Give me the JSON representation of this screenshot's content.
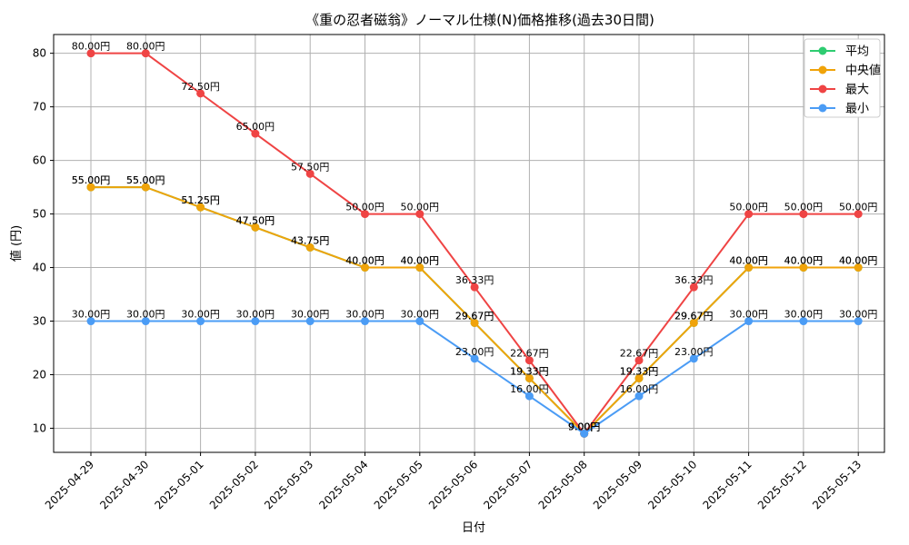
{
  "chart_data": {
    "type": "line",
    "title": "《重の忍者磁翁》ノーマル仕様(N)価格推移(過去30日間)",
    "xlabel": "日付",
    "ylabel": "値 (円)",
    "categories": [
      "2025-04-29",
      "2025-04-30",
      "2025-05-01",
      "2025-05-02",
      "2025-05-03",
      "2025-05-04",
      "2025-05-05",
      "2025-05-06",
      "2025-05-07",
      "2025-05-08",
      "2025-05-09",
      "2025-05-10",
      "2025-05-11",
      "2025-05-12",
      "2025-05-13"
    ],
    "ylim": [
      5.5,
      83.5
    ],
    "yticks": [
      10,
      20,
      30,
      40,
      50,
      60,
      70,
      80
    ],
    "grid": true,
    "legend_position": "top-right",
    "series": [
      {
        "name": "平均",
        "color": "#2ecc71",
        "values": [
          55.0,
          55.0,
          51.25,
          47.5,
          43.75,
          40.0,
          40.0,
          29.67,
          19.33,
          9.0,
          19.33,
          29.67,
          40.0,
          40.0,
          40.0
        ],
        "labels": [
          "55.00円",
          "55.00円",
          "51.25円",
          "47.50円",
          "43.75円",
          "40.00円",
          "40.00円",
          "29.67円",
          "19.33円",
          "9.00円",
          "19.33円",
          "29.67円",
          "40.00円",
          "40.00円",
          "40.00円"
        ]
      },
      {
        "name": "中央値",
        "color": "#f0a30a",
        "values": [
          55.0,
          55.0,
          51.25,
          47.5,
          43.75,
          40.0,
          40.0,
          29.67,
          19.33,
          9.0,
          19.33,
          29.67,
          40.0,
          40.0,
          40.0
        ],
        "labels": [
          "55.00円",
          "55.00円",
          "51.25円",
          "47.50円",
          "43.75円",
          "40.00円",
          "40.00円",
          "29.67円",
          "19.33円",
          "9.00円",
          "19.33円",
          "29.67円",
          "40.00円",
          "40.00円",
          "40.00円"
        ]
      },
      {
        "name": "最大",
        "color": "#ef4444",
        "values": [
          80.0,
          80.0,
          72.5,
          65.0,
          57.5,
          50.0,
          50.0,
          36.33,
          22.67,
          9.0,
          22.67,
          36.33,
          50.0,
          50.0,
          50.0
        ],
        "labels": [
          "80.00円",
          "80.00円",
          "72.50円",
          "65.00円",
          "57.50円",
          "50.00円",
          "50.00円",
          "36.33円",
          "22.67円",
          "9.00円",
          "22.67円",
          "36.33円",
          "50.00円",
          "50.00円",
          "50.00円"
        ]
      },
      {
        "name": "最小",
        "color": "#4b9cf5",
        "values": [
          30.0,
          30.0,
          30.0,
          30.0,
          30.0,
          30.0,
          30.0,
          23.0,
          16.0,
          9.0,
          16.0,
          23.0,
          30.0,
          30.0,
          30.0
        ],
        "labels": [
          "30.00円",
          "30.00円",
          "30.00円",
          "30.00円",
          "30.00円",
          "30.00円",
          "30.00円",
          "23.00円",
          "16.00円",
          "9.00円",
          "16.00円",
          "23.00円",
          "30.00円",
          "30.00円",
          "30.00円"
        ]
      }
    ]
  }
}
